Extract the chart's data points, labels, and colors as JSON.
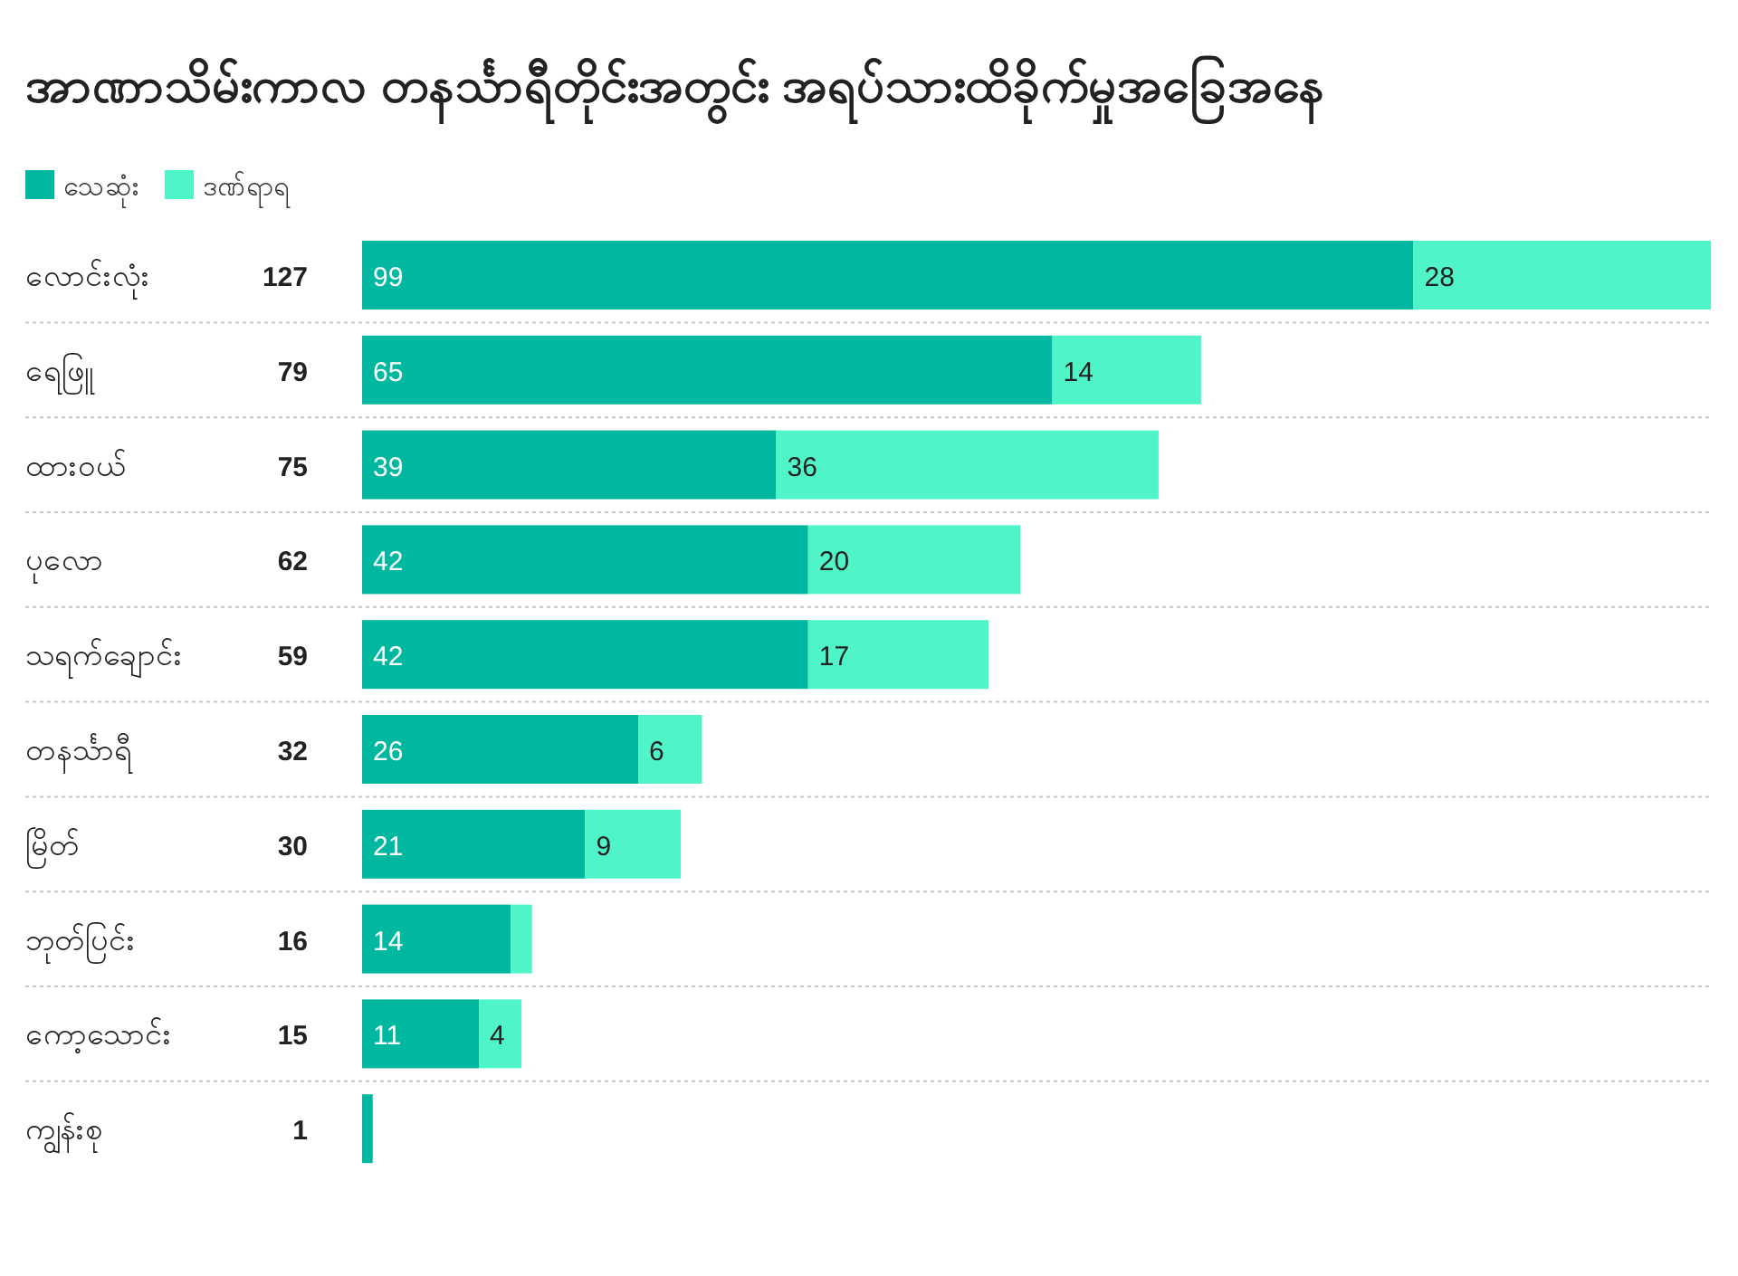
{
  "chart_data": {
    "type": "bar",
    "orientation": "horizontal",
    "stacked": true,
    "legend": "top left",
    "title": "အာဏာသိမ်းကာလ တနင်္သာရီတိုင်းအတွင်း အရပ်သားထိခိုက်မှုအခြေအနေ",
    "categories": [
      "လောင်းလုံး",
      "ရေဖြူ",
      "ထားဝယ်",
      "ပုလော",
      "သရက်ချောင်း",
      "တနင်္သာရီ",
      "မြိတ်",
      "ဘုတ်ပြင်း",
      "ကော့သောင်း",
      "ကျွန်းစု"
    ],
    "series": [
      {
        "name": "သေဆုံး",
        "color": "#00b8a0",
        "values": [
          99,
          65,
          39,
          42,
          42,
          26,
          21,
          14,
          11,
          1
        ],
        "value_labels": [
          "99",
          "65",
          "39",
          "42",
          "42",
          "26",
          "21",
          "14",
          "11",
          null
        ]
      },
      {
        "name": "ဒဏ်ရာရ",
        "color": "#4ff5c8",
        "values": [
          28,
          14,
          36,
          20,
          17,
          6,
          9,
          2,
          4,
          0
        ],
        "value_labels": [
          "28",
          "14",
          "36",
          "20",
          "17",
          "6",
          "9",
          null,
          "4",
          null
        ]
      }
    ],
    "totals": [
      "127",
      "79",
      "75",
      "62",
      "59",
      "32",
      "30",
      "16",
      "15",
      "1"
    ]
  }
}
